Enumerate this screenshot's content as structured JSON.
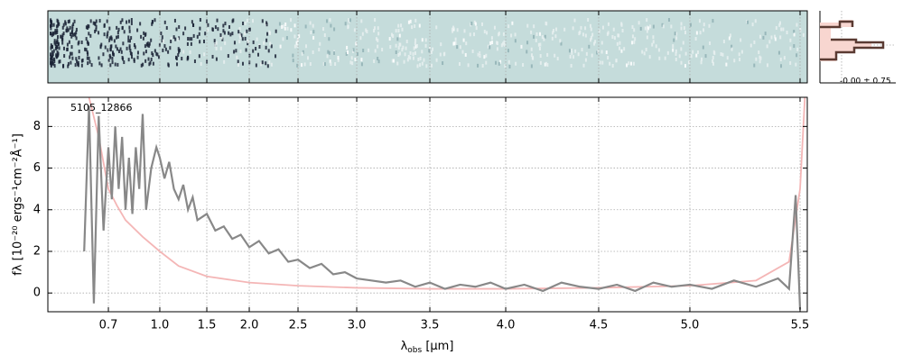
{
  "chart_data": {
    "type": "line",
    "label": "5105_12866",
    "profile_label": "-0.00 ± 0.75",
    "xlabel": [
      "λ",
      "obs",
      " [μm]"
    ],
    "ylabel": "fλ [10⁻²⁰ ergs⁻¹cm⁻²Å⁻¹]",
    "xscale": "prism",
    "xlim": [
      0.45,
      5.53
    ],
    "ylim": [
      -0.9,
      9.4
    ],
    "xticks": [
      0.7,
      {
        "value": 1.0,
        "label": "1.0"
      },
      1.5,
      {
        "value": 2.0,
        "label": "2.0"
      },
      2.5,
      {
        "value": 3.0,
        "label": "3.0"
      },
      3.5,
      {
        "value": 4.0,
        "label": "4.0"
      },
      4.5,
      {
        "value": 5.0,
        "label": "5.0"
      },
      5.5
    ],
    "yticks": [
      0,
      2,
      4,
      6,
      8
    ],
    "grid": true,
    "series": [
      {
        "name": "flux",
        "color": "#888888",
        "x": [
          0.6,
          0.62,
          0.64,
          0.66,
          0.68,
          0.7,
          0.72,
          0.74,
          0.76,
          0.78,
          0.8,
          0.82,
          0.84,
          0.86,
          0.88,
          0.9,
          0.92,
          0.95,
          0.98,
          1.0,
          1.05,
          1.1,
          1.15,
          1.2,
          1.25,
          1.3,
          1.35,
          1.4,
          1.5,
          1.6,
          1.7,
          1.8,
          1.9,
          2.0,
          2.1,
          2.2,
          2.3,
          2.4,
          2.5,
          2.6,
          2.7,
          2.8,
          2.9,
          3.0,
          3.1,
          3.2,
          3.3,
          3.4,
          3.5,
          3.6,
          3.7,
          3.8,
          3.9,
          4.0,
          4.1,
          4.2,
          4.3,
          4.4,
          4.5,
          4.6,
          4.7,
          4.8,
          4.9,
          5.0,
          5.1,
          5.2,
          5.3,
          5.4,
          5.45,
          5.48,
          5.5
        ],
        "values": [
          2,
          9,
          -0.5,
          8.5,
          3,
          7,
          4.5,
          8,
          5,
          7.5,
          4,
          6.5,
          3.8,
          7,
          5,
          8.6,
          4,
          6,
          7,
          6.5,
          5.5,
          6.3,
          5,
          4.5,
          5.2,
          4,
          4.6,
          3.5,
          3.8,
          3,
          3.2,
          2.6,
          2.8,
          2.2,
          2.5,
          1.9,
          2.1,
          1.5,
          1.6,
          1.2,
          1.4,
          0.9,
          1.0,
          0.7,
          0.6,
          0.5,
          0.6,
          0.3,
          0.5,
          0.2,
          0.4,
          0.3,
          0.5,
          0.2,
          0.4,
          0.1,
          0.5,
          0.3,
          0.2,
          0.4,
          0.1,
          0.5,
          0.3,
          0.4,
          0.2,
          0.6,
          0.3,
          0.7,
          0.2,
          4.7,
          -0.8
        ]
      },
      {
        "name": "error",
        "color": "#f4b6b6",
        "x": [
          0.62,
          0.66,
          0.7,
          0.75,
          0.8,
          0.9,
          1.0,
          1.2,
          1.5,
          2.0,
          2.5,
          3.0,
          3.5,
          4.0,
          4.5,
          5.0,
          5.3,
          5.45,
          5.5,
          5.52
        ],
        "values": [
          9.4,
          7.5,
          5,
          4.2,
          3.5,
          2.7,
          2.0,
          1.3,
          0.8,
          0.5,
          0.35,
          0.25,
          0.2,
          0.2,
          0.25,
          0.35,
          0.6,
          1.5,
          5,
          9.4
        ]
      }
    ]
  }
}
